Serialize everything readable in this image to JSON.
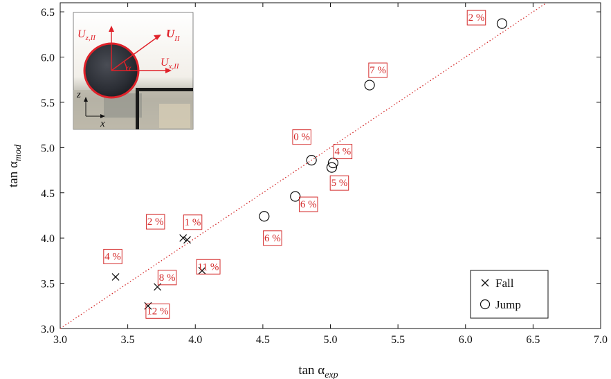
{
  "chart_data": {
    "type": "scatter",
    "title": "",
    "xlabel": {
      "base": "tan α",
      "sub": "exp"
    },
    "ylabel": {
      "base": "tan α",
      "sub": "mod"
    },
    "xlim": [
      3.0,
      7.0
    ],
    "ylim": [
      3.0,
      6.6
    ],
    "xticks": [
      "3.0",
      "3.5",
      "4.0",
      "4.5",
      "5.0",
      "5.5",
      "6.0",
      "6.5",
      "7.0"
    ],
    "yticks": [
      "3.0",
      "3.5",
      "4.0",
      "4.5",
      "5.0",
      "5.5",
      "6.0",
      "6.5"
    ],
    "grid": false,
    "legend": {
      "position": "bottom-right",
      "entries": [
        "Fall",
        "Jump"
      ]
    },
    "reference_line": {
      "style": "dotted",
      "color": "#d42a2a",
      "from": [
        3.0,
        3.0
      ],
      "to": [
        6.6,
        6.6
      ]
    },
    "series": [
      {
        "name": "Fall",
        "marker": "x",
        "points": [
          {
            "x": 3.41,
            "y": 3.57,
            "label": "4 %"
          },
          {
            "x": 3.65,
            "y": 3.25,
            "label": "12 %"
          },
          {
            "x": 3.72,
            "y": 3.46,
            "label": "8 %"
          },
          {
            "x": 3.91,
            "y": 4.0,
            "label": "2 %"
          },
          {
            "x": 3.94,
            "y": 3.98,
            "label": "1 %"
          },
          {
            "x": 4.05,
            "y": 3.64,
            "label": "11 %"
          }
        ]
      },
      {
        "name": "Jump",
        "marker": "o",
        "points": [
          {
            "x": 4.51,
            "y": 4.24,
            "label": "6 %"
          },
          {
            "x": 4.74,
            "y": 4.46,
            "label": "6 %"
          },
          {
            "x": 4.86,
            "y": 4.86,
            "label": "0 %"
          },
          {
            "x": 5.01,
            "y": 4.78,
            "label": "5 %"
          },
          {
            "x": 5.02,
            "y": 4.83,
            "label": "4 %"
          },
          {
            "x": 5.29,
            "y": 5.69,
            "label": "7 %"
          },
          {
            "x": 6.27,
            "y": 6.37,
            "label": "2 %"
          }
        ]
      }
    ],
    "inset": {
      "labels": {
        "uz": "U",
        "uz_sub": "z,II",
        "u": "U",
        "u_sub": "II",
        "ux": "U",
        "ux_sub": "x,II",
        "alpha": "α",
        "z": "z",
        "x": "x"
      }
    }
  },
  "colors": {
    "annotation": "#d42a2a",
    "marker": "#111111",
    "axis": "#111111"
  }
}
